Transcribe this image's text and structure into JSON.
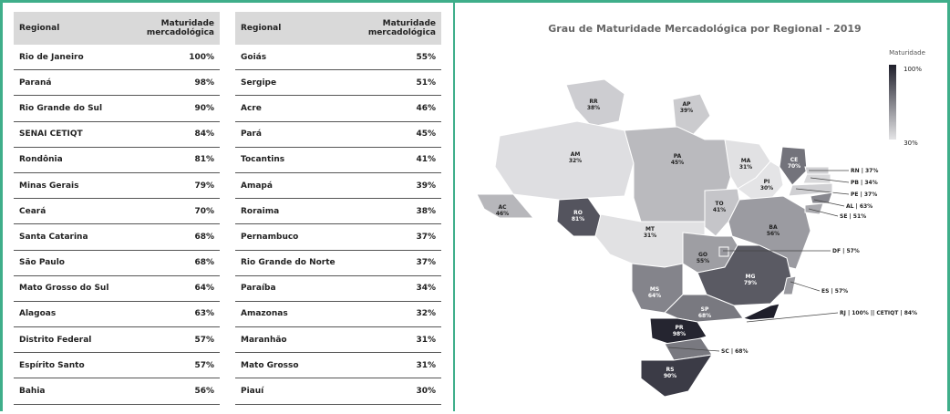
{
  "tables": [
    {
      "headers": [
        "Regional",
        "Maturidade mercadológica"
      ],
      "rows": [
        [
          "Rio de Janeiro",
          "100%"
        ],
        [
          "Paraná",
          "98%"
        ],
        [
          "Rio Grande do Sul",
          "90%"
        ],
        [
          "SENAI CETIQT",
          "84%"
        ],
        [
          "Rondônia",
          "81%"
        ],
        [
          "Minas Gerais",
          "79%"
        ],
        [
          "Ceará",
          "70%"
        ],
        [
          "Santa Catarina",
          "68%"
        ],
        [
          "São Paulo",
          "68%"
        ],
        [
          "Mato Grosso do Sul",
          "64%"
        ],
        [
          "Alagoas",
          "63%"
        ],
        [
          "Distrito Federal",
          "57%"
        ],
        [
          "Espírito Santo",
          "57%"
        ],
        [
          "Bahia",
          "56%"
        ]
      ]
    },
    {
      "headers": [
        "Regional",
        "Maturidade mercadológica"
      ],
      "rows": [
        [
          "Goiás",
          "55%"
        ],
        [
          "Sergipe",
          "51%"
        ],
        [
          "Acre",
          "46%"
        ],
        [
          "Pará",
          "45%"
        ],
        [
          "Tocantins",
          "41%"
        ],
        [
          "Amapá",
          "39%"
        ],
        [
          "Roraima",
          "38%"
        ],
        [
          "Pernambuco",
          "37%"
        ],
        [
          "Rio Grande do Norte",
          "37%"
        ],
        [
          "Paraíba",
          "34%"
        ],
        [
          "Amazonas",
          "32%"
        ],
        [
          "Maranhão",
          "31%"
        ],
        [
          "Mato Grosso",
          "31%"
        ],
        [
          "Piauí",
          "30%"
        ]
      ]
    }
  ],
  "map": {
    "title": "Grau de Maturidade Mercadológica por Regional - 2019",
    "legend": {
      "title": "Maturidade",
      "max": {
        "value": 100,
        "label": "100%"
      },
      "min": {
        "value": 30,
        "label": "30%"
      }
    },
    "color_range": [
      "#e4e4e6",
      "#1f1f2b"
    ],
    "regions": [
      {
        "code": "RR",
        "value": 38,
        "value_label": "38%"
      },
      {
        "code": "AP",
        "value": 39,
        "value_label": "39%"
      },
      {
        "code": "AM",
        "value": 32,
        "value_label": "32%"
      },
      {
        "code": "PA",
        "value": 45,
        "value_label": "45%"
      },
      {
        "code": "AC",
        "value": 46,
        "value_label": "46%"
      },
      {
        "code": "RO",
        "value": 81,
        "value_label": "81%"
      },
      {
        "code": "MT",
        "value": 31,
        "value_label": "31%"
      },
      {
        "code": "MA",
        "value": 31,
        "value_label": "31%"
      },
      {
        "code": "PI",
        "value": 30,
        "value_label": "30%"
      },
      {
        "code": "CE",
        "value": 70,
        "value_label": "70%"
      },
      {
        "code": "TO",
        "value": 41,
        "value_label": "41%"
      },
      {
        "code": "BA",
        "value": 56,
        "value_label": "56%"
      },
      {
        "code": "GO",
        "value": 55,
        "value_label": "55%"
      },
      {
        "code": "MG",
        "value": 79,
        "value_label": "79%"
      },
      {
        "code": "MS",
        "value": 64,
        "value_label": "64%"
      },
      {
        "code": "SP",
        "value": 68,
        "value_label": "68%"
      },
      {
        "code": "PR",
        "value": 98,
        "value_label": "98%"
      },
      {
        "code": "SC",
        "value": 68,
        "callout": "SC | 68%"
      },
      {
        "code": "RS",
        "value": 90,
        "value_label": "90%"
      },
      {
        "code": "RN",
        "value": 37,
        "callout": "RN | 37%"
      },
      {
        "code": "PB",
        "value": 34,
        "callout": "PB | 34%"
      },
      {
        "code": "PE",
        "value": 37,
        "callout": "PE | 37%"
      },
      {
        "code": "AL",
        "value": 63,
        "callout": "AL | 63%"
      },
      {
        "code": "SE",
        "value": 51,
        "callout": "SE | 51%"
      },
      {
        "code": "DF",
        "value": 57,
        "callout": "DF | 57%"
      },
      {
        "code": "ES",
        "value": 57,
        "callout": "ES | 57%"
      },
      {
        "code": "RJ",
        "value": 100,
        "callout": "RJ | 100% || CETIQT | 84%"
      }
    ]
  }
}
